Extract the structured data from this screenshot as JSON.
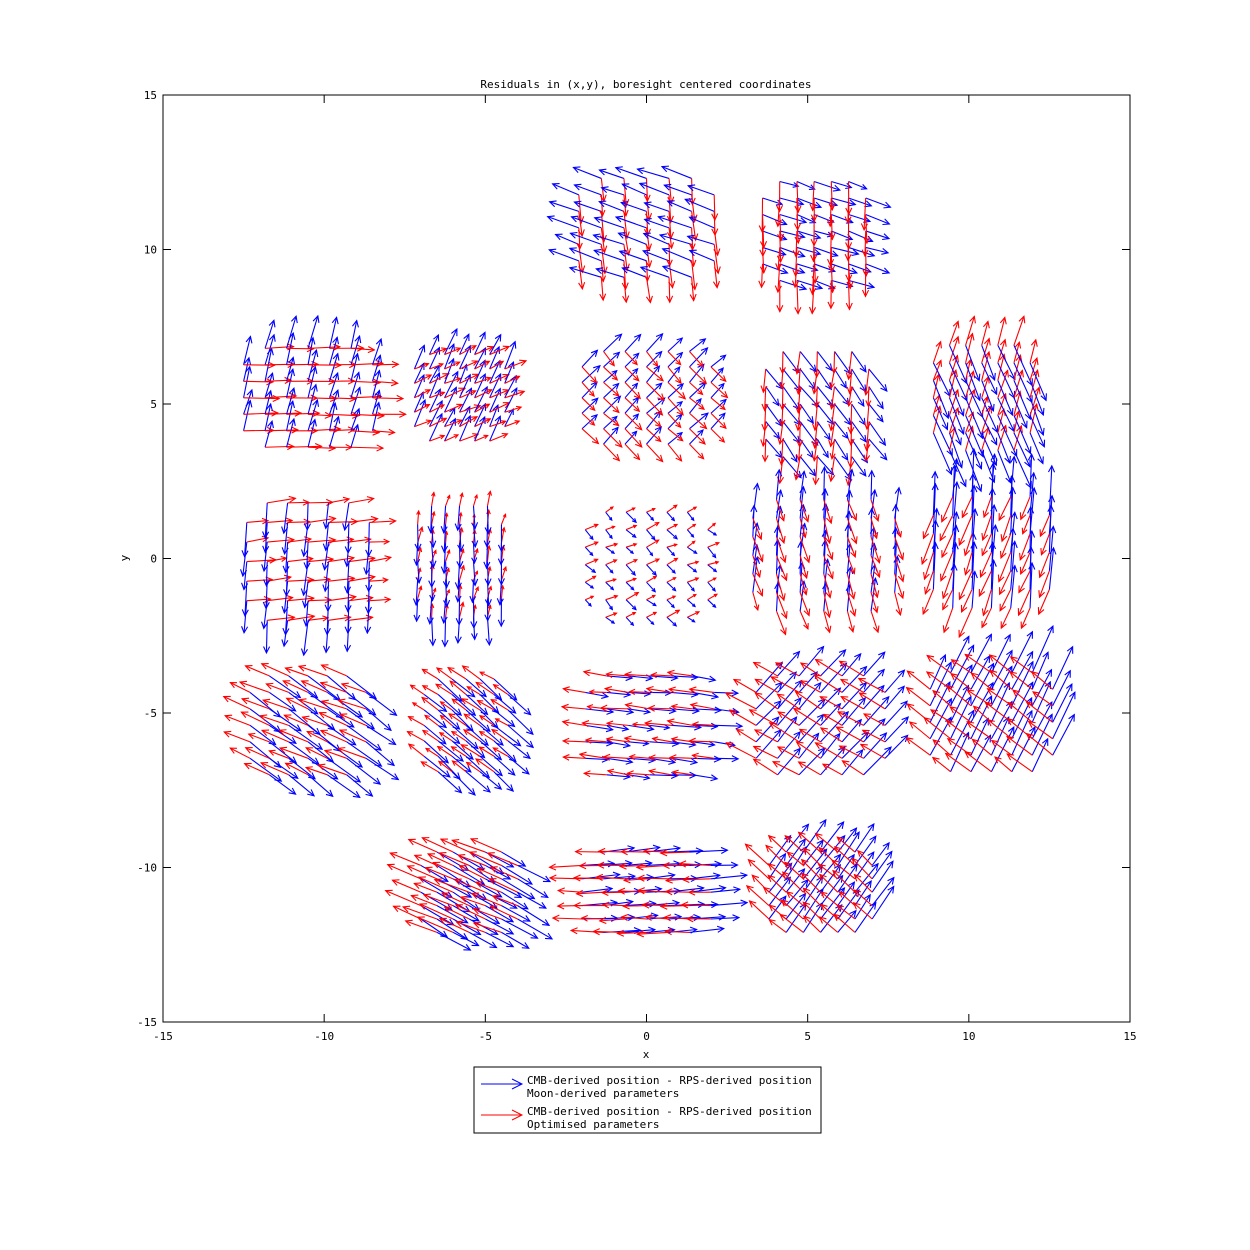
{
  "chart_data": {
    "type": "quiver",
    "title": "Residuals in (x,y), boresight centered coordinates",
    "xlabel": "x",
    "ylabel": "y",
    "xlim": [
      -15,
      15
    ],
    "ylim": [
      -15,
      15
    ],
    "xticks": [
      -15,
      -10,
      -5,
      0,
      5,
      10,
      15
    ],
    "yticks": [
      -15,
      -10,
      -5,
      0,
      5,
      10,
      15
    ],
    "xtick_labels": [
      "-15",
      "-10",
      "-5",
      "0",
      "5",
      "10",
      "15"
    ],
    "ytick_labels": [
      "-15",
      "-10",
      "-5",
      "0",
      "5",
      "10",
      "15"
    ],
    "grid": false,
    "legend_position": "bottom-center",
    "legend": [
      {
        "lines": [
          "CMB-derived position - RPS-derived position",
          "Moon-derived parameters"
        ],
        "color": "#0000ff"
      },
      {
        "lines": [
          "CMB-derived position - RPS-derived position",
          "Optimised parameters"
        ],
        "color": "#ff0000"
      }
    ],
    "series_colors": {
      "moon": "#0000ff",
      "optimised": "#ff0000"
    },
    "modules": [
      {
        "center": [
          0,
          10.7
        ],
        "half_width": 2.1,
        "half_height": 1.6,
        "moon_vec": [
          -0.55,
          0.2
        ],
        "opt_vec": [
          0.05,
          -0.5
        ]
      },
      {
        "center": [
          5.2,
          10.6
        ],
        "half_width": 1.6,
        "half_height": 1.6,
        "moon_vec": [
          0.45,
          -0.15
        ],
        "opt_vec": [
          0.0,
          -0.6
        ]
      },
      {
        "center": [
          -10.5,
          5.2
        ],
        "half_width": 2.0,
        "half_height": 1.6,
        "moon_vec": [
          0.15,
          0.55
        ],
        "opt_vec": [
          0.6,
          0.0
        ]
      },
      {
        "center": [
          -5.8,
          5.2
        ],
        "half_width": 1.4,
        "half_height": 1.4,
        "moon_vec": [
          0.2,
          0.45
        ],
        "opt_vec": [
          0.35,
          0.15
        ]
      },
      {
        "center": [
          0,
          5.2
        ],
        "half_width": 2.0,
        "half_height": 1.5,
        "moon_vec": [
          0.3,
          0.3
        ],
        "opt_vec": [
          0.3,
          -0.3
        ]
      },
      {
        "center": [
          5.3,
          5.0
        ],
        "half_width": 1.6,
        "half_height": 1.7,
        "moon_vec": [
          0.3,
          -0.4
        ],
        "opt_vec": [
          -0.05,
          -0.5
        ]
      },
      {
        "center": [
          10.4,
          5.2
        ],
        "half_width": 1.5,
        "half_height": 1.7,
        "moon_vec": [
          0.3,
          -0.7
        ],
        "opt_vec": [
          0.15,
          0.5
        ]
      },
      {
        "center": [
          -10.5,
          -0.1
        ],
        "half_width": 1.9,
        "half_height": 1.9,
        "moon_vec": [
          -0.05,
          -0.6
        ],
        "opt_vec": [
          0.5,
          0.05
        ]
      },
      {
        "center": [
          -5.8,
          -0.1
        ],
        "half_width": 1.3,
        "half_height": 1.8,
        "moon_vec": [
          0.0,
          -0.5
        ],
        "opt_vec": [
          0.05,
          0.25
        ]
      },
      {
        "center": [
          0,
          -0.2
        ],
        "half_width": 1.9,
        "half_height": 1.7,
        "moon_vec": [
          0.15,
          -0.15
        ],
        "opt_vec": [
          0.2,
          0.1
        ]
      },
      {
        "center": [
          5.5,
          0.1
        ],
        "half_width": 2.2,
        "half_height": 1.8,
        "moon_vec": [
          0.05,
          0.6
        ],
        "opt_vec": [
          0.15,
          -0.45
        ]
      },
      {
        "center": [
          10.7,
          0.2
        ],
        "half_width": 1.8,
        "half_height": 1.8,
        "moon_vec": [
          0.05,
          0.9
        ],
        "opt_vec": [
          -0.2,
          -0.5
        ]
      },
      {
        "center": [
          -10.5,
          -5.4
        ],
        "half_width": 1.8,
        "half_height": 1.6,
        "moon_vec": [
          0.6,
          -0.45
        ],
        "opt_vec": [
          -0.5,
          0.2
        ]
      },
      {
        "center": [
          -5.6,
          -5.4
        ],
        "half_width": 1.3,
        "half_height": 1.5,
        "moon_vec": [
          0.45,
          -0.4
        ],
        "opt_vec": [
          -0.3,
          0.2
        ]
      },
      {
        "center": [
          0.1,
          -5.4
        ],
        "half_width": 2.0,
        "half_height": 1.6,
        "moon_vec": [
          0.5,
          -0.05
        ],
        "opt_vec": [
          -0.45,
          0.05
        ]
      },
      {
        "center": [
          5.4,
          -5.4
        ],
        "half_width": 2.0,
        "half_height": 1.6,
        "moon_vec": [
          0.45,
          0.5
        ],
        "opt_vec": [
          -0.5,
          0.3
        ]
      },
      {
        "center": [
          10.7,
          -5.3
        ],
        "half_width": 1.9,
        "half_height": 1.6,
        "moon_vec": [
          0.4,
          0.8
        ],
        "opt_vec": [
          -0.45,
          0.35
        ]
      },
      {
        "center": [
          -5.5,
          -10.8
        ],
        "half_width": 1.5,
        "half_height": 1.3,
        "moon_vec": [
          0.6,
          -0.35
        ],
        "opt_vec": [
          -0.6,
          0.25
        ]
      },
      {
        "center": [
          0,
          -10.8
        ],
        "half_width": 2.0,
        "half_height": 1.3,
        "moon_vec": [
          0.65,
          0.05
        ],
        "opt_vec": [
          -0.55,
          0.0
        ]
      },
      {
        "center": [
          5.4,
          -10.8
        ],
        "half_width": 1.6,
        "half_height": 1.3,
        "moon_vec": [
          0.4,
          0.55
        ],
        "opt_vec": [
          -0.4,
          0.35
        ]
      }
    ]
  }
}
